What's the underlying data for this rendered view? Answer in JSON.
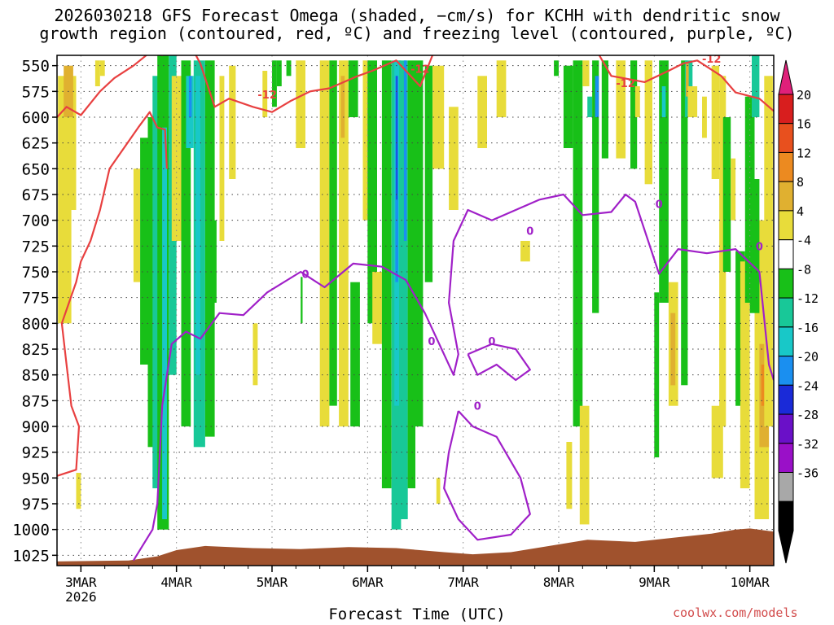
{
  "title_line1": "2026030218 GFS Forecast Omega (shaded, −cm/s) for KCHH with dendritic snow",
  "title_line2": "growth region (contoured, red, ºC) and freezing level (contoured, purple, ºC)",
  "credit": "coolwx.com/models",
  "chart_data": {
    "type": "heatmap",
    "title": "2026030218 GFS Forecast Omega (shaded, −cm/s) for KCHH with dendritic snow growth region (contoured, red, ºC) and freezing level (contoured, purple, ºC)",
    "xlabel": "Forecast Time (UTC)",
    "ylabel": "",
    "x_ticks": [
      "3MAR",
      "4MAR",
      "5MAR",
      "6MAR",
      "7MAR",
      "8MAR",
      "9MAR",
      "10MAR"
    ],
    "x_tick_year": "2026",
    "xlim_days": [
      2.75,
      10.25
    ],
    "y_ticks": [
      550,
      575,
      600,
      625,
      650,
      675,
      700,
      725,
      750,
      775,
      800,
      825,
      850,
      875,
      900,
      925,
      950,
      975,
      1000,
      1025
    ],
    "ylim": [
      1035,
      540
    ],
    "grid": true,
    "colorbar": {
      "labels": [
        20,
        16,
        12,
        8,
        4,
        -4,
        -8,
        -12,
        -16,
        -20,
        -24,
        -28,
        -32,
        -36
      ],
      "colors": [
        "#d81e1e",
        "#e8501e",
        "#ec8a20",
        "#e0b030",
        "#e8dc3a",
        "#ffffff",
        "#18c018",
        "#18c898",
        "#18c8c8",
        "#1a8ff0",
        "#1a2ad8",
        "#6a10c8",
        "#9a10c8",
        "#a8a8a8",
        "#000000"
      ],
      "top_arrow_color": "#e0207a",
      "bottom_arrow_color": "#000000"
    },
    "contour_labels": [
      {
        "text": "-12",
        "color": "#e84040"
      },
      {
        "text": "-12",
        "color": "#e84040"
      },
      {
        "text": "-12",
        "color": "#e84040"
      },
      {
        "text": "-12",
        "color": "#e84040"
      },
      {
        "text": "0",
        "color": "#a020c8"
      },
      {
        "text": "0",
        "color": "#a020c8"
      },
      {
        "text": "0",
        "color": "#a020c8"
      },
      {
        "text": "0",
        "color": "#a020c8"
      },
      {
        "text": "0",
        "color": "#a020c8"
      },
      {
        "text": "0",
        "color": "#a020c8"
      },
      {
        "text": "0",
        "color": "#a020c8"
      }
    ],
    "dgz_minus12_contour": [
      [
        2.75,
        600
      ],
      [
        2.85,
        590
      ],
      [
        3.0,
        598
      ],
      [
        3.2,
        575
      ],
      [
        3.35,
        562
      ],
      [
        3.55,
        550
      ],
      [
        3.75,
        535
      ],
      [
        3.85,
        540
      ],
      [
        4.0,
        532
      ],
      [
        4.1,
        522
      ],
      [
        4.25,
        548
      ],
      [
        4.4,
        590
      ],
      [
        4.55,
        582
      ],
      [
        4.8,
        590
      ],
      [
        5.0,
        595
      ],
      [
        5.2,
        584
      ],
      [
        5.4,
        575
      ],
      [
        5.6,
        572
      ],
      [
        5.9,
        560
      ],
      [
        6.05,
        555
      ],
      [
        6.3,
        545
      ],
      [
        6.55,
        570
      ],
      [
        6.7,
        535
      ],
      [
        7.0,
        525
      ],
      [
        7.5,
        530
      ],
      [
        7.7,
        520
      ],
      [
        8.0,
        518
      ],
      [
        8.3,
        520
      ],
      [
        8.55,
        560
      ],
      [
        8.9,
        566
      ],
      [
        9.15,
        555
      ],
      [
        9.3,
        548
      ],
      [
        9.45,
        545
      ],
      [
        9.7,
        560
      ],
      [
        9.85,
        576
      ],
      [
        10.1,
        582
      ],
      [
        10.25,
        594
      ]
    ],
    "dgz_lower_contour": [
      [
        2.75,
        948
      ],
      [
        2.95,
        942
      ],
      [
        2.98,
        900
      ],
      [
        2.9,
        880
      ],
      [
        2.85,
        840
      ],
      [
        2.8,
        800
      ],
      [
        2.95,
        760
      ],
      [
        3.0,
        740
      ],
      [
        3.1,
        720
      ],
      [
        3.2,
        690
      ],
      [
        3.3,
        650
      ],
      [
        3.45,
        630
      ],
      [
        3.6,
        610
      ],
      [
        3.72,
        595
      ],
      [
        3.8,
        610
      ],
      [
        3.88,
        612
      ],
      [
        3.9,
        650
      ]
    ],
    "freezing_level_contour": [
      [
        3.55,
        1030
      ],
      [
        3.75,
        1000
      ],
      [
        3.8,
        975
      ],
      [
        3.85,
        880
      ],
      [
        3.95,
        820
      ],
      [
        4.1,
        808
      ],
      [
        4.25,
        815
      ],
      [
        4.45,
        790
      ],
      [
        4.7,
        792
      ],
      [
        4.95,
        770
      ],
      [
        5.3,
        750
      ],
      [
        5.55,
        765
      ],
      [
        5.85,
        742
      ],
      [
        6.15,
        745
      ],
      [
        6.4,
        758
      ],
      [
        6.6,
        790
      ],
      [
        6.75,
        820
      ],
      [
        6.9,
        850
      ],
      [
        6.95,
        830
      ],
      [
        6.85,
        780
      ],
      [
        6.9,
        720
      ],
      [
        7.05,
        690
      ],
      [
        7.3,
        700
      ],
      [
        7.55,
        690
      ],
      [
        7.8,
        680
      ],
      [
        8.05,
        675
      ],
      [
        8.25,
        695
      ],
      [
        8.55,
        692
      ],
      [
        8.7,
        675
      ],
      [
        8.8,
        682
      ],
      [
        9.05,
        752
      ],
      [
        9.25,
        728
      ],
      [
        9.55,
        732
      ],
      [
        9.85,
        728
      ],
      [
        10.1,
        750
      ],
      [
        10.2,
        840
      ],
      [
        10.25,
        855
      ]
    ],
    "freezing_level_loops": [
      [
        [
          7.05,
          830
        ],
        [
          7.3,
          820
        ],
        [
          7.55,
          825
        ],
        [
          7.7,
          845
        ],
        [
          7.55,
          855
        ],
        [
          7.35,
          840
        ],
        [
          7.15,
          850
        ],
        [
          7.05,
          830
        ]
      ],
      [
        [
          6.95,
          885
        ],
        [
          7.1,
          900
        ],
        [
          7.35,
          910
        ],
        [
          7.6,
          950
        ],
        [
          7.7,
          985
        ],
        [
          7.5,
          1005
        ],
        [
          7.15,
          1010
        ],
        [
          6.95,
          990
        ],
        [
          6.8,
          960
        ],
        [
          6.85,
          925
        ],
        [
          6.95,
          885
        ]
      ]
    ]
  }
}
